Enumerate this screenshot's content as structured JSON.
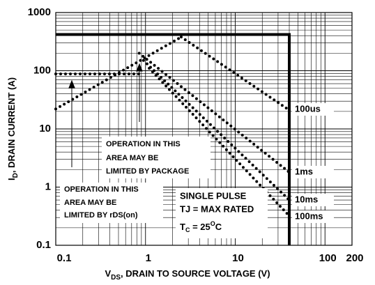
{
  "chart_data": {
    "type": "line",
    "xlabel": {
      "main": "V",
      "sub": "DS",
      "rest": ", DRAIN TO SOURCE VOLTAGE (V)"
    },
    "ylabel": {
      "main": "I",
      "sub": "D",
      "rest": ", DRAIN CURRENT (A)"
    },
    "xlog": true,
    "ylog": true,
    "grid": true,
    "xlim": [
      0.1,
      200
    ],
    "ylim": [
      0.1,
      1000
    ],
    "xticks": [
      0.1,
      1,
      10,
      100,
      200
    ],
    "yticks": [
      0.1,
      1,
      10,
      100,
      1000
    ],
    "xgrid": [
      0.2,
      0.3,
      0.4,
      0.5,
      0.6,
      0.7,
      0.8,
      0.9,
      2,
      3,
      4,
      5,
      6,
      7,
      8,
      9,
      20,
      30,
      40,
      50,
      60,
      70,
      80,
      90
    ],
    "ygrid": [
      0.2,
      0.3,
      0.4,
      0.5,
      0.6,
      0.7,
      0.8,
      0.9,
      2,
      3,
      4,
      5,
      6,
      7,
      8,
      9,
      20,
      30,
      40,
      50,
      60,
      70,
      80,
      90,
      200,
      300,
      400,
      500,
      600,
      700,
      800,
      900
    ],
    "boundary": {
      "color": "#000000",
      "x": [
        0.1,
        40,
        40
      ],
      "values": [
        420,
        420,
        0.1
      ]
    },
    "rds_limit": {
      "color": "#000000",
      "x": [
        0.1,
        2.5
      ],
      "values": [
        22,
        380
      ]
    },
    "package_limit": {
      "color": "#000000",
      "x": [
        0.1,
        0.9
      ],
      "values": [
        88,
        88
      ]
    },
    "series": [
      {
        "name": "100us",
        "color": "#000000",
        "x": [
          2.5,
          40
        ],
        "values": [
          380,
          21
        ]
      },
      {
        "name": "1ms",
        "color": "#000000",
        "x": [
          0.85,
          40
        ],
        "values": [
          200,
          1.8
        ]
      },
      {
        "name": "10ms",
        "color": "#000000",
        "x": [
          0.95,
          40
        ],
        "values": [
          150,
          0.6
        ]
      },
      {
        "name": "100ms",
        "color": "#000000",
        "x": [
          1.1,
          40
        ],
        "values": [
          110,
          0.32
        ]
      }
    ],
    "annotations": {
      "package": [
        "OPERATION IN THIS",
        "AREA MAY BE",
        "LIMITED BY PACKAGE"
      ],
      "rds": [
        "OPERATION IN THIS",
        "AREA MAY BE",
        "LIMITED BY rDS(on)"
      ],
      "pulse": "SINGLE PULSE",
      "tj": "TJ = MAX RATED",
      "tc": {
        "main": "T",
        "sub": "C",
        "rest": " = 25",
        "sup": "O",
        "end": "C"
      }
    }
  }
}
